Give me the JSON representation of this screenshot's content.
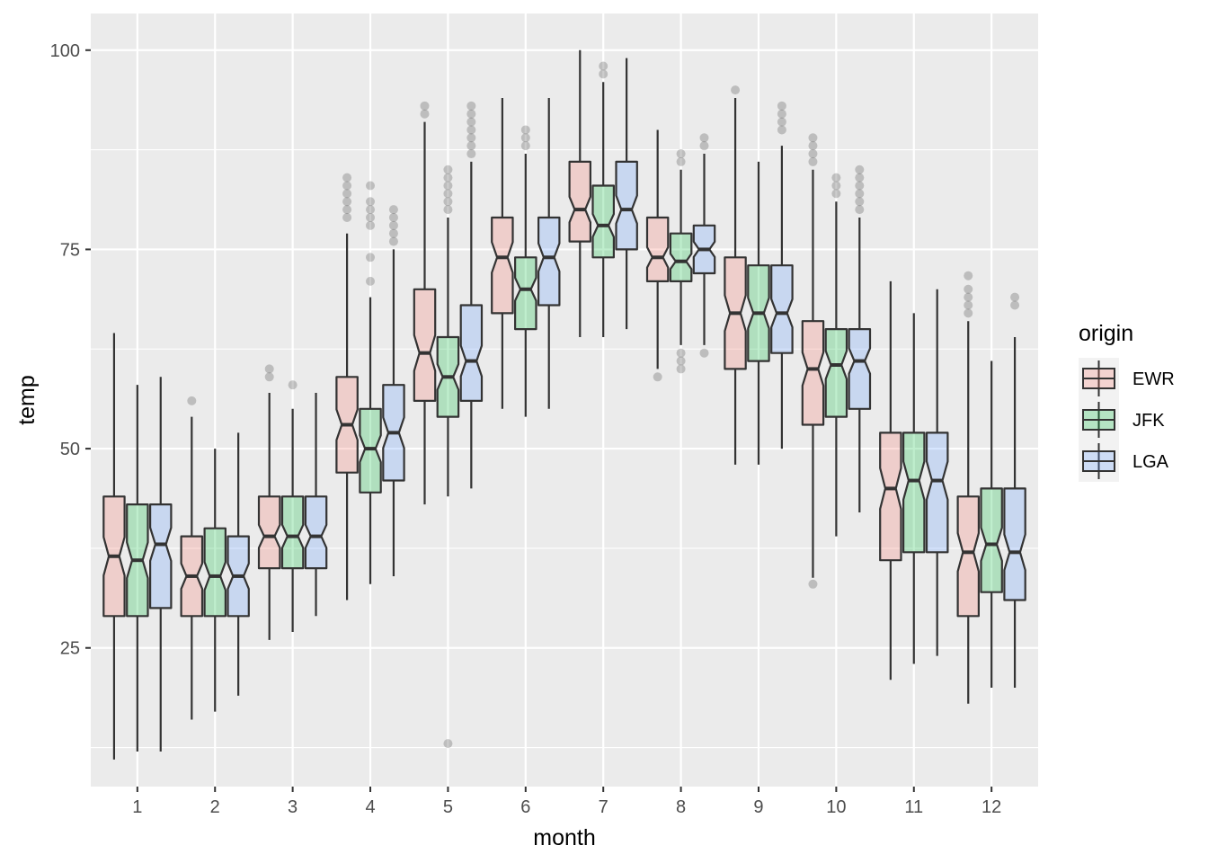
{
  "chart_data": {
    "type": "boxplot",
    "notched": true,
    "xlabel": "month",
    "ylabel": "temp",
    "categories": [
      "1",
      "2",
      "3",
      "4",
      "5",
      "6",
      "7",
      "8",
      "9",
      "10",
      "11",
      "12"
    ],
    "y_ticks": [
      25,
      50,
      75,
      100
    ],
    "y_tick_labels": [
      "25",
      "50",
      "75",
      "100"
    ],
    "ylim": [
      7.6,
      104.6
    ],
    "legend": {
      "title": "origin",
      "position": "right",
      "entries": [
        "EWR",
        "JFK",
        "LGA"
      ]
    },
    "series": [
      {
        "name": "EWR",
        "color": "#F8766D",
        "boxes": [
          {
            "month": 1,
            "lower_whisker": 11,
            "q1": 29,
            "median": 36.5,
            "q3": 44,
            "upper_whisker": 64.5,
            "outliers": []
          },
          {
            "month": 2,
            "lower_whisker": 16,
            "q1": 29,
            "median": 34,
            "q3": 39,
            "upper_whisker": 54,
            "outliers": [
              56
            ]
          },
          {
            "month": 3,
            "lower_whisker": 26,
            "q1": 35,
            "median": 39,
            "q3": 44,
            "upper_whisker": 57,
            "outliers": [
              59,
              60
            ]
          },
          {
            "month": 4,
            "lower_whisker": 31,
            "q1": 47,
            "median": 53,
            "q3": 59,
            "upper_whisker": 77,
            "outliers": [
              79,
              80,
              81,
              82,
              83,
              84
            ]
          },
          {
            "month": 5,
            "lower_whisker": 43,
            "q1": 56,
            "median": 62,
            "q3": 70,
            "upper_whisker": 91,
            "outliers": [
              92,
              93
            ]
          },
          {
            "month": 6,
            "lower_whisker": 55,
            "q1": 67,
            "median": 74,
            "q3": 79,
            "upper_whisker": 94,
            "outliers": []
          },
          {
            "month": 7,
            "lower_whisker": 64,
            "q1": 76,
            "median": 80,
            "q3": 86,
            "upper_whisker": 100,
            "outliers": []
          },
          {
            "month": 8,
            "lower_whisker": 60,
            "q1": 71,
            "median": 74,
            "q3": 79,
            "upper_whisker": 90,
            "outliers": [
              59
            ]
          },
          {
            "month": 9,
            "lower_whisker": 48,
            "q1": 60,
            "median": 67,
            "q3": 74,
            "upper_whisker": 94,
            "outliers": [
              95
            ]
          },
          {
            "month": 10,
            "lower_whisker": 33.8,
            "q1": 53,
            "median": 60,
            "q3": 66,
            "upper_whisker": 85,
            "outliers": [
              33,
              86,
              87,
              88,
              89
            ]
          },
          {
            "month": 11,
            "lower_whisker": 21,
            "q1": 36,
            "median": 45,
            "q3": 52,
            "upper_whisker": 71,
            "outliers": []
          },
          {
            "month": 12,
            "lower_whisker": 18,
            "q1": 29,
            "median": 37,
            "q3": 44,
            "upper_whisker": 66,
            "outliers": [
              67,
              68,
              69,
              70,
              71.7
            ]
          }
        ]
      },
      {
        "name": "JFK",
        "color": "#00BA38",
        "boxes": [
          {
            "month": 1,
            "lower_whisker": 12,
            "q1": 29,
            "median": 36,
            "q3": 43,
            "upper_whisker": 58,
            "outliers": []
          },
          {
            "month": 2,
            "lower_whisker": 17,
            "q1": 29,
            "median": 34,
            "q3": 40,
            "upper_whisker": 50,
            "outliers": []
          },
          {
            "month": 3,
            "lower_whisker": 27,
            "q1": 35,
            "median": 39,
            "q3": 44,
            "upper_whisker": 55,
            "outliers": [
              58
            ]
          },
          {
            "month": 4,
            "lower_whisker": 33,
            "q1": 44.5,
            "median": 50,
            "q3": 55,
            "upper_whisker": 69,
            "outliers": [
              71,
              74,
              78,
              79,
              80,
              81,
              83
            ]
          },
          {
            "month": 5,
            "lower_whisker": 44,
            "q1": 54,
            "median": 59,
            "q3": 64,
            "upper_whisker": 79,
            "outliers": [
              13,
              80,
              81,
              82,
              83,
              84,
              85
            ]
          },
          {
            "month": 6,
            "lower_whisker": 54,
            "q1": 65,
            "median": 70,
            "q3": 74,
            "upper_whisker": 87,
            "outliers": [
              88,
              89,
              90
            ]
          },
          {
            "month": 7,
            "lower_whisker": 64,
            "q1": 74,
            "median": 78,
            "q3": 83,
            "upper_whisker": 96,
            "outliers": [
              97,
              98
            ]
          },
          {
            "month": 8,
            "lower_whisker": 63,
            "q1": 71,
            "median": 73.5,
            "q3": 77,
            "upper_whisker": 85,
            "outliers": [
              60,
              61,
              62,
              86,
              87
            ]
          },
          {
            "month": 9,
            "lower_whisker": 48,
            "q1": 61,
            "median": 67,
            "q3": 73,
            "upper_whisker": 86,
            "outliers": []
          },
          {
            "month": 10,
            "lower_whisker": 39,
            "q1": 54,
            "median": 60.5,
            "q3": 65,
            "upper_whisker": 81,
            "outliers": [
              82,
              83,
              84
            ]
          },
          {
            "month": 11,
            "lower_whisker": 23,
            "q1": 37,
            "median": 46,
            "q3": 52,
            "upper_whisker": 67,
            "outliers": []
          },
          {
            "month": 12,
            "lower_whisker": 20,
            "q1": 32,
            "median": 38,
            "q3": 45,
            "upper_whisker": 61,
            "outliers": []
          }
        ]
      },
      {
        "name": "LGA",
        "color": "#619CFF",
        "boxes": [
          {
            "month": 1,
            "lower_whisker": 12,
            "q1": 30,
            "median": 38,
            "q3": 43,
            "upper_whisker": 59,
            "outliers": []
          },
          {
            "month": 2,
            "lower_whisker": 19,
            "q1": 29,
            "median": 34,
            "q3": 39,
            "upper_whisker": 52,
            "outliers": []
          },
          {
            "month": 3,
            "lower_whisker": 29,
            "q1": 35,
            "median": 39,
            "q3": 44,
            "upper_whisker": 57,
            "outliers": []
          },
          {
            "month": 4,
            "lower_whisker": 34,
            "q1": 46,
            "median": 52,
            "q3": 58,
            "upper_whisker": 75,
            "outliers": [
              76,
              77,
              78,
              79,
              80
            ]
          },
          {
            "month": 5,
            "lower_whisker": 45,
            "q1": 56,
            "median": 61,
            "q3": 68,
            "upper_whisker": 86,
            "outliers": [
              87,
              88,
              89,
              90,
              91,
              92,
              93
            ]
          },
          {
            "month": 6,
            "lower_whisker": 55,
            "q1": 68,
            "median": 74,
            "q3": 79,
            "upper_whisker": 94,
            "outliers": []
          },
          {
            "month": 7,
            "lower_whisker": 65,
            "q1": 75,
            "median": 80,
            "q3": 86,
            "upper_whisker": 99,
            "outliers": []
          },
          {
            "month": 8,
            "lower_whisker": 63,
            "q1": 72,
            "median": 75,
            "q3": 78,
            "upper_whisker": 87,
            "outliers": [
              62,
              88,
              89
            ]
          },
          {
            "month": 9,
            "lower_whisker": 50,
            "q1": 62,
            "median": 67,
            "q3": 73,
            "upper_whisker": 88,
            "outliers": [
              90,
              91,
              92,
              93
            ]
          },
          {
            "month": 10,
            "lower_whisker": 42,
            "q1": 55,
            "median": 61,
            "q3": 65,
            "upper_whisker": 79,
            "outliers": [
              80,
              81,
              82,
              83,
              84,
              85
            ]
          },
          {
            "month": 11,
            "lower_whisker": 24,
            "q1": 37,
            "median": 46,
            "q3": 52,
            "upper_whisker": 70,
            "outliers": []
          },
          {
            "month": 12,
            "lower_whisker": 20,
            "q1": 31,
            "median": 37,
            "q3": 45,
            "upper_whisker": 64,
            "outliers": [
              68,
              69
            ]
          }
        ]
      }
    ]
  }
}
